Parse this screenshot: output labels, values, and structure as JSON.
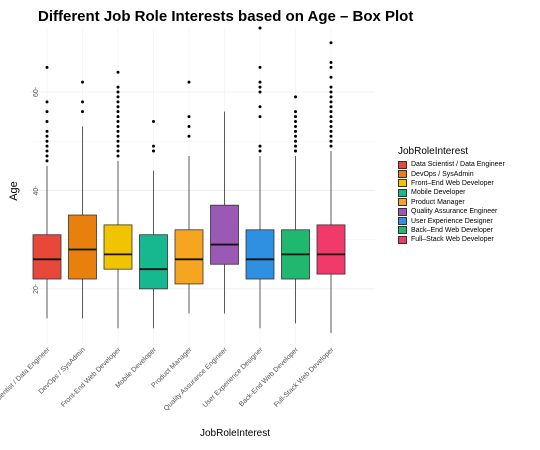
{
  "chart_data": {
    "type": "box",
    "title": "Different Job Role Interests based on Age – Box Plot",
    "xlabel": "JobRoleInterest",
    "ylabel": "Age",
    "ylim": [
      9,
      73
    ],
    "y_ticks": [
      20,
      40,
      60
    ],
    "grid": true,
    "legend_position": "right",
    "legend_title": "JobRoleInterest",
    "categories": [
      "Data Scientist / Data Engineer",
      "DevOps / SysAdmin",
      "Front-End Web Developer",
      "Mobile Developer",
      "Product Manager",
      "Quality Assurance Engineer",
      "User Experience Designer",
      "Back-End Web Developer",
      "Full-Stack Web Developer"
    ],
    "legend_labels": [
      "Data Scientist / Data Engineer",
      "DevOps / SysAdmin",
      "Front–End Web Developer",
      "Mobile Developer",
      "Product Manager",
      "Quality Assurance Engineer",
      "User Experience Designer",
      "Back–End Web Developer",
      "Full–Stack Web Developer"
    ],
    "colors": [
      "#e8483a",
      "#e8800e",
      "#f0c400",
      "#17b890",
      "#f5a520",
      "#9b59b6",
      "#2f8fe0",
      "#1fb86e",
      "#f03a6a"
    ],
    "boxes": [
      {
        "min": 14,
        "q1": 22,
        "median": 26,
        "q3": 31,
        "max": 45,
        "outliers": [
          46,
          47,
          48,
          49,
          50,
          51,
          52,
          54,
          56,
          58,
          65
        ]
      },
      {
        "min": 14,
        "q1": 22,
        "median": 28,
        "q3": 35,
        "max": 53,
        "outliers": [
          56,
          58,
          62
        ]
      },
      {
        "min": 12,
        "q1": 24,
        "median": 27,
        "q3": 33,
        "max": 46,
        "outliers": [
          47,
          48,
          49,
          50,
          51,
          52,
          53,
          54,
          55,
          56,
          57,
          58,
          59,
          60,
          61,
          64
        ]
      },
      {
        "min": 12,
        "q1": 20,
        "median": 24,
        "q3": 31,
        "max": 44,
        "outliers": [
          48,
          49,
          54
        ]
      },
      {
        "min": 15,
        "q1": 21,
        "median": 26,
        "q3": 32,
        "max": 47,
        "outliers": [
          51,
          53,
          55,
          62
        ]
      },
      {
        "min": 15,
        "q1": 25,
        "median": 29,
        "q3": 37,
        "max": 56,
        "outliers": []
      },
      {
        "min": 12,
        "q1": 22,
        "median": 26,
        "q3": 32,
        "max": 47,
        "outliers": [
          48,
          49,
          55,
          57,
          60,
          61,
          62,
          65,
          73
        ]
      },
      {
        "min": 13,
        "q1": 22,
        "median": 27,
        "q3": 32,
        "max": 47,
        "outliers": [
          48,
          49,
          50,
          51,
          52,
          53,
          54,
          55,
          56,
          59
        ]
      },
      {
        "min": 11,
        "q1": 23,
        "median": 27,
        "q3": 33,
        "max": 48,
        "outliers": [
          49,
          50,
          51,
          52,
          53,
          54,
          55,
          56,
          57,
          58,
          59,
          60,
          61,
          63,
          65,
          66,
          70
        ]
      }
    ]
  }
}
